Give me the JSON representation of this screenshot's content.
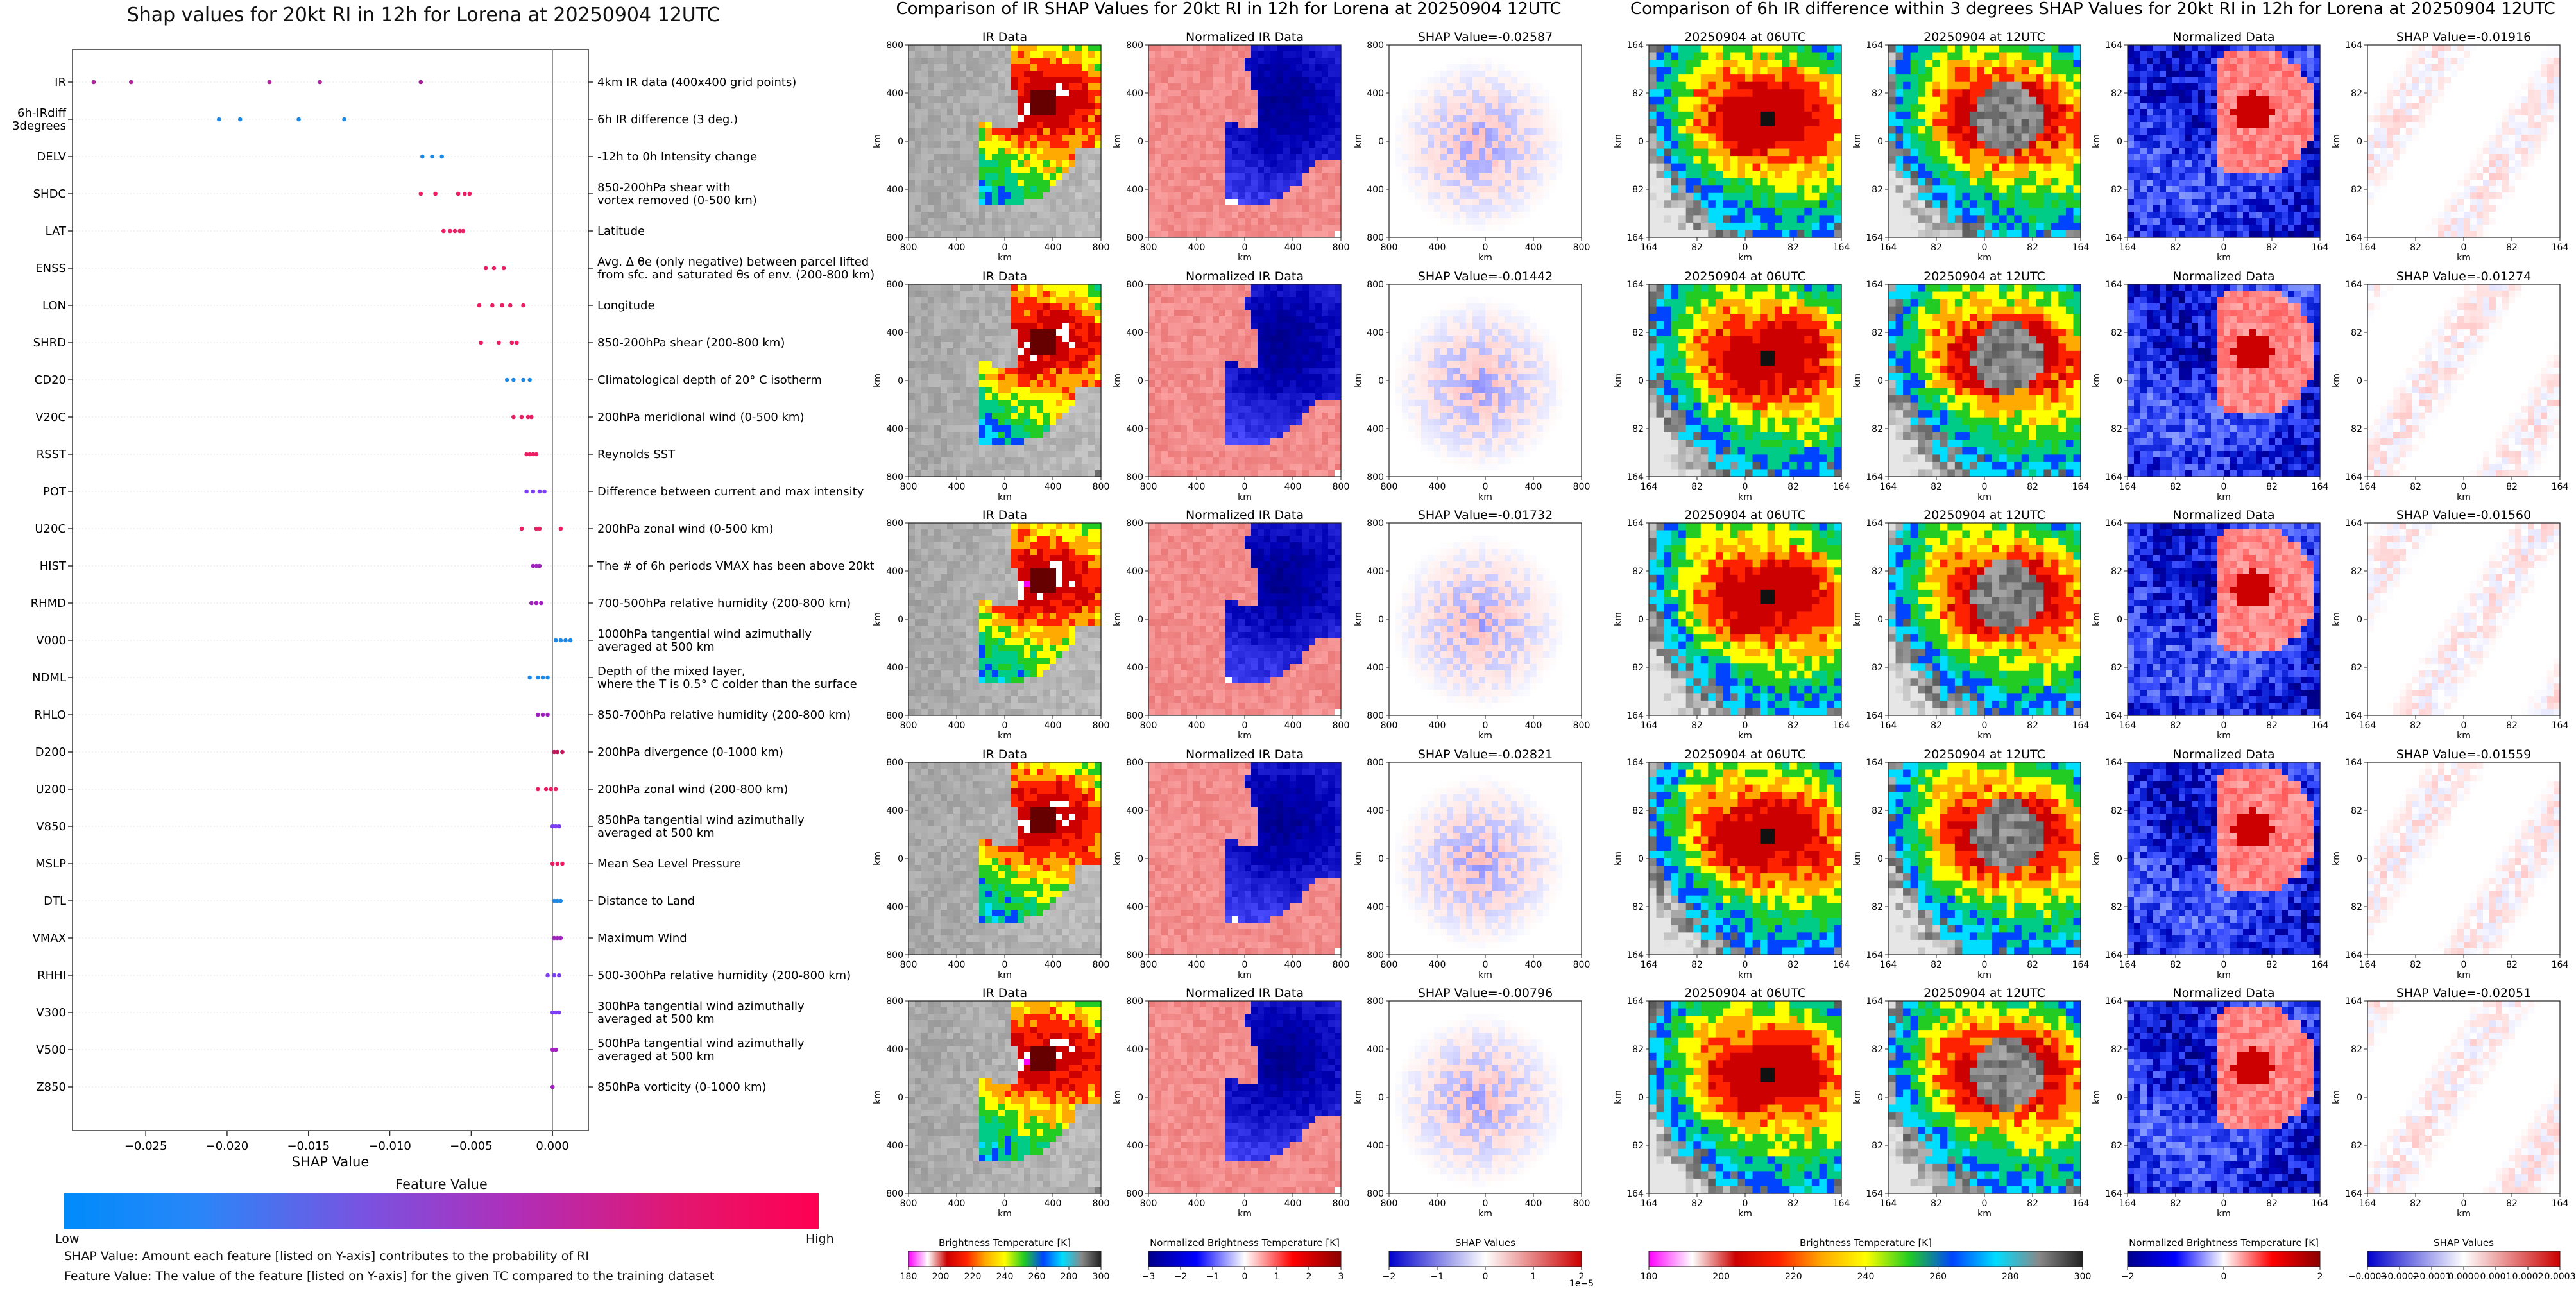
{
  "swarm": {
    "title": "Shap values for 20kt RI in 12h for Lorena at 20250904 12UTC",
    "xlabel": "SHAP Value",
    "xticks": [
      "−0.025",
      "−0.020",
      "−0.015",
      "−0.010",
      "−0.005",
      "0.000"
    ],
    "colorbar_title": "Feature Value",
    "colorbar_low": "Low",
    "colorbar_high": "High",
    "foot1": "SHAP Value: Amount each feature [listed on Y-axis] contributes to the probability of RI",
    "foot2": "Feature Value: The value of the feature [listed on Y-axis] for the given TC compared to the training dataset",
    "colors": {
      "low": "#1e88e5",
      "mid": "#8e24aa",
      "high": "#e91e63"
    }
  },
  "chart_data": {
    "type": "scatter",
    "title": "Shap values for 20kt RI in 12h for Lorena at 20250904 12UTC",
    "xlabel": "SHAP Value",
    "xlim": [
      -0.0295,
      0.0022
    ],
    "features": [
      {
        "name": "IR",
        "desc": "4km IR data (400x400 grid points)",
        "color": "#a8269a",
        "shap": [
          -0.0282,
          -0.0259,
          -0.0174,
          -0.0143,
          -0.0081
        ]
      },
      {
        "name": "6h-IRdiff\n3degrees",
        "desc": "6h IR difference (3 deg.)",
        "color": "#1e88e5",
        "shap": [
          -0.0205,
          -0.0192,
          -0.0156,
          -0.0128
        ]
      },
      {
        "name": "DELV",
        "desc": "-12h to 0h Intensity change",
        "color": "#1e88e5",
        "shap": [
          -0.008,
          -0.0074,
          -0.0068
        ]
      },
      {
        "name": "SHDC",
        "desc": "850-200hPa shear with\nvortex removed (0-500 km)",
        "color": "#e91e63",
        "shap": [
          -0.0081,
          -0.0072,
          -0.0058,
          -0.0054,
          -0.0051
        ]
      },
      {
        "name": "LAT",
        "desc": "Latitude",
        "color": "#e91e63",
        "shap": [
          -0.0067,
          -0.0063,
          -0.006,
          -0.0057,
          -0.0055
        ]
      },
      {
        "name": "ENSS",
        "desc": "Avg. Δ θe (only negative) between parcel lifted\nfrom sfc. and saturated θs of env. (200-800 km)",
        "color": "#e91e63",
        "shap": [
          -0.0041,
          -0.0036,
          -0.003
        ]
      },
      {
        "name": "LON",
        "desc": "Longitude",
        "color": "#e91e63",
        "shap": [
          -0.0045,
          -0.0037,
          -0.0031,
          -0.0026,
          -0.0018
        ]
      },
      {
        "name": "SHRD",
        "desc": "850-200hPa shear (200-800 km)",
        "color": "#e91e63",
        "shap": [
          -0.0044,
          -0.0033,
          -0.0025,
          -0.0022
        ]
      },
      {
        "name": "CD20",
        "desc": "Climatological depth of 20° C isotherm",
        "color": "#1e88e5",
        "shap": [
          -0.0028,
          -0.0024,
          -0.0018,
          -0.0014
        ]
      },
      {
        "name": "V20C",
        "desc": "200hPa meridional wind (0-500 km)",
        "color": "#e91e63",
        "shap": [
          -0.0024,
          -0.0019,
          -0.0015,
          -0.0013
        ]
      },
      {
        "name": "RSST",
        "desc": "Reynolds SST",
        "color": "#e91e63",
        "shap": [
          -0.0016,
          -0.0014,
          -0.0012,
          -0.001
        ]
      },
      {
        "name": "POT",
        "desc": "Difference between current and max intensity",
        "color": "#7e3ff2",
        "shap": [
          -0.0016,
          -0.0012,
          -0.0008,
          -0.0005
        ]
      },
      {
        "name": "U20C",
        "desc": "200hPa zonal wind (0-500 km)",
        "color": "#e91e63",
        "shap": [
          -0.0019,
          -0.001,
          -0.0008,
          0.0005
        ]
      },
      {
        "name": "HIST",
        "desc": "The # of 6h periods VMAX has been above 20kt",
        "color": "#a020c0",
        "shap": [
          -0.0012,
          -0.001,
          -0.0008
        ]
      },
      {
        "name": "RHMD",
        "desc": "700-500hPa relative humidity (200-800 km)",
        "color": "#a020c0",
        "shap": [
          -0.0013,
          -0.001,
          -0.0007
        ]
      },
      {
        "name": "V000",
        "desc": "1000hPa tangential wind azimuthally\naveraged at 500 km",
        "color": "#1e88e5",
        "shap": [
          0.0002,
          0.0005,
          0.0008,
          0.0011
        ]
      },
      {
        "name": "NDML",
        "desc": "Depth of the mixed layer,\nwhere the T is 0.5° C colder than the surface",
        "color": "#1e88e5",
        "shap": [
          -0.0014,
          -0.0009,
          -0.0006,
          -0.0003
        ]
      },
      {
        "name": "RHLO",
        "desc": "850-700hPa relative humidity (200-800 km)",
        "color": "#a020c0",
        "shap": [
          -0.0009,
          -0.0006,
          -0.0003
        ]
      },
      {
        "name": "D200",
        "desc": "200hPa divergence (0-1000 km)",
        "color": "#c2185b",
        "shap": [
          0.0001,
          0.0003,
          0.0006
        ]
      },
      {
        "name": "U200",
        "desc": "200hPa zonal wind (200-800 km)",
        "color": "#e91e63",
        "shap": [
          -0.0009,
          -0.0004,
          -0.0001,
          0.0002
        ]
      },
      {
        "name": "V850",
        "desc": "850hPa tangential wind azimuthally\naveraged at 500 km",
        "color": "#7e3ff2",
        "shap": [
          0.0,
          0.0002,
          0.0004
        ]
      },
      {
        "name": "MSLP",
        "desc": "Mean Sea Level Pressure",
        "color": "#e91e63",
        "shap": [
          0.0,
          0.0003,
          0.0006
        ]
      },
      {
        "name": "DTL",
        "desc": "Distance to Land",
        "color": "#1e88e5",
        "shap": [
          0.0001,
          0.0003,
          0.0005
        ]
      },
      {
        "name": "VMAX",
        "desc": "Maximum Wind",
        "color": "#a020c0",
        "shap": [
          0.0001,
          0.0003,
          0.0005
        ]
      },
      {
        "name": "RHHI",
        "desc": "500-300hPa relative humidity (200-800 km)",
        "color": "#7e3ff2",
        "shap": [
          -0.0003,
          0.0001,
          0.0004
        ]
      },
      {
        "name": "V300",
        "desc": "300hPa tangential wind azimuthally\naveraged at 500 km",
        "color": "#7e3ff2",
        "shap": [
          0.0,
          0.0002,
          0.0004
        ]
      },
      {
        "name": "V500",
        "desc": "500hPa tangential wind azimuthally\naveraged at 500 km",
        "color": "#a020c0",
        "shap": [
          0.0,
          0.0002
        ]
      },
      {
        "name": "Z850",
        "desc": "850hPa vorticity (0-1000 km)",
        "color": "#a020c0",
        "shap": [
          0.0
        ]
      }
    ]
  },
  "ir_panel": {
    "suptitle": "Comparison of IR SHAP Values for 20kt RI in 12h for Lorena at 20250904 12UTC",
    "col_titles": [
      "IR Data",
      "Normalized IR Data"
    ],
    "shap_titles": [
      "SHAP Value=-0.02587",
      "SHAP Value=-0.01442",
      "SHAP Value=-0.01732",
      "SHAP Value=-0.02821",
      "SHAP Value=-0.00796"
    ],
    "axis_label": "km",
    "xticks": [
      "800",
      "400",
      "0",
      "400",
      "800"
    ],
    "yticks": [
      "800",
      "400",
      "0",
      "400",
      "800"
    ],
    "cb1_title": "Brightness Temperature [K]",
    "cb1_ticks": [
      "180",
      "200",
      "220",
      "240",
      "260",
      "280",
      "300"
    ],
    "cb2_title": "Normalized Brightness Temperature [K]",
    "cb2_ticks": [
      "−3",
      "−2",
      "−1",
      "0",
      "1",
      "2",
      "3"
    ],
    "cb3_title": "SHAP Values",
    "cb3_ticks": [
      "−2",
      "−1",
      "0",
      "1",
      "2"
    ],
    "cb3_exp": "1e−5"
  },
  "diff_panel": {
    "suptitle": "Comparison of 6h IR difference within 3 degrees SHAP Values for 20kt RI in 12h for Lorena at 20250904 12UTC",
    "col_titles": [
      "20250904 at 06UTC",
      "20250904 at 12UTC",
      "Normalized Data"
    ],
    "shap_titles": [
      "SHAP Value=-0.01916",
      "SHAP Value=-0.01274",
      "SHAP Value=-0.01560",
      "SHAP Value=-0.01559",
      "SHAP Value=-0.02051"
    ],
    "axis_label": "km",
    "xticks": [
      "164",
      "82",
      "0",
      "82",
      "164"
    ],
    "yticks": [
      "164",
      "82",
      "0",
      "82",
      "164"
    ],
    "cb1_title": "Brightness Temperature [K]",
    "cb1_ticks": [
      "180",
      "200",
      "220",
      "240",
      "260",
      "280",
      "300"
    ],
    "cb2_title": "Normalized Brightness Temperature [K]",
    "cb2_ticks": [
      "−2",
      "0",
      "2"
    ],
    "cb3_title": "SHAP Values",
    "cb3_ticks": [
      "−0.0003",
      "−0.0002",
      "−0.0001",
      "0.0000",
      "0.0001",
      "0.0002",
      "0.0003"
    ]
  }
}
